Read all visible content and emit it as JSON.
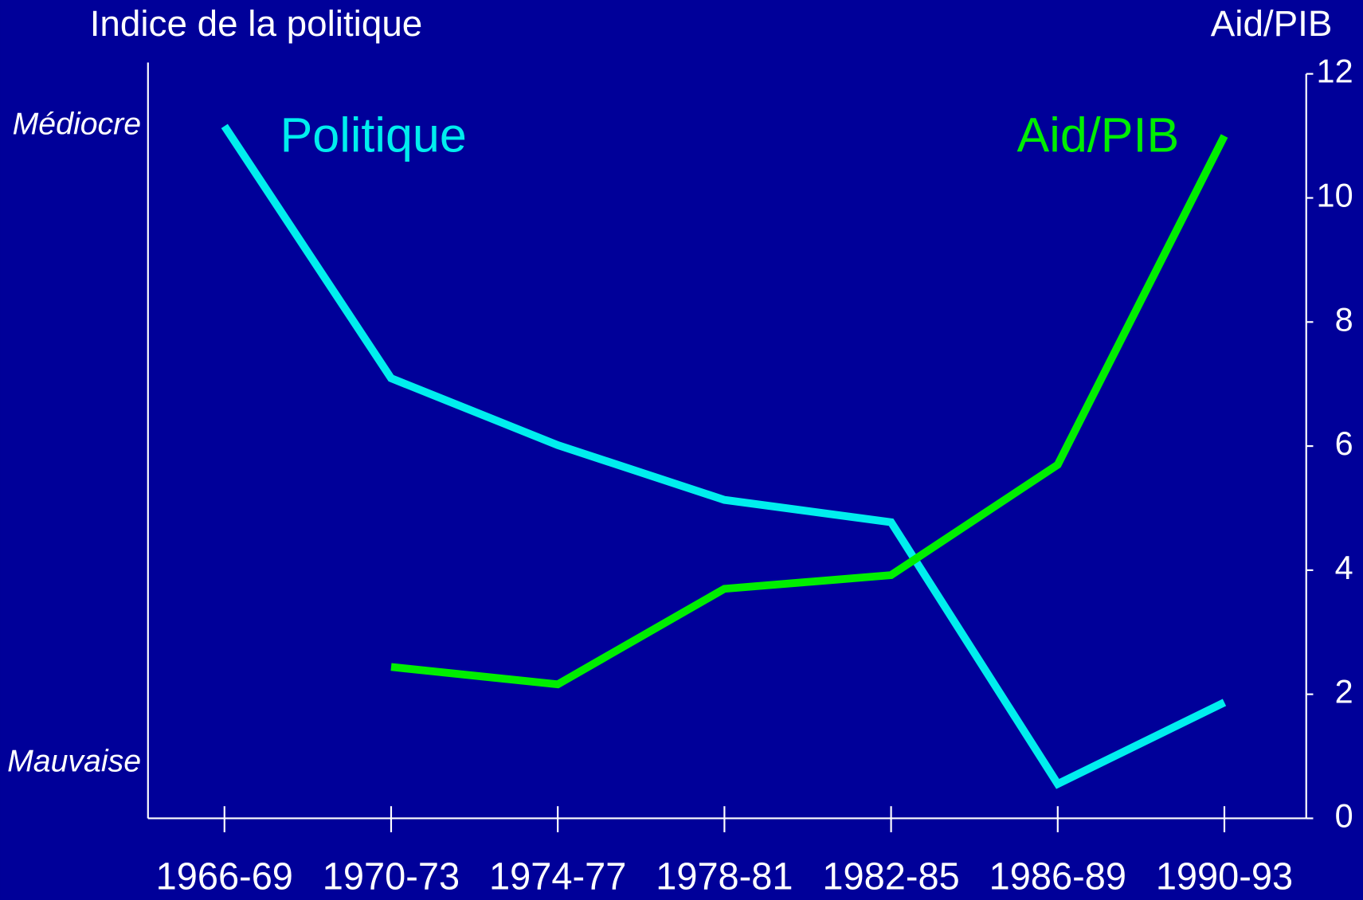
{
  "chart_data": {
    "type": "line",
    "ylabel": "Indice de la politique",
    "y2label": "Aid/PIB",
    "categories": [
      "1966-69",
      "1970-73",
      "1974-77",
      "1978-81",
      "1982-85",
      "1986-89",
      "1990-93"
    ],
    "ylim": [
      -0.087,
      1.082
    ],
    "yticks": [
      {
        "value": 1,
        "label": "Médiocre"
      },
      {
        "value": 0,
        "label": "Mauvaise"
      }
    ],
    "y2lim": [
      0,
      12
    ],
    "y2ticks": [
      0,
      2,
      4,
      6,
      8,
      10,
      12
    ],
    "series": [
      {
        "name": "Politique",
        "color": "#00eeee",
        "values": [
          1.0,
          0.604,
          0.499,
          0.413,
          0.378,
          -0.033,
          0.095
        ]
      },
      {
        "name": "Aid/PIB",
        "color": "#00ee00",
        "axis": "y2",
        "values": [
          null,
          2.44,
          2.16,
          3.7,
          3.92,
          5.7,
          11.0
        ]
      }
    ]
  }
}
